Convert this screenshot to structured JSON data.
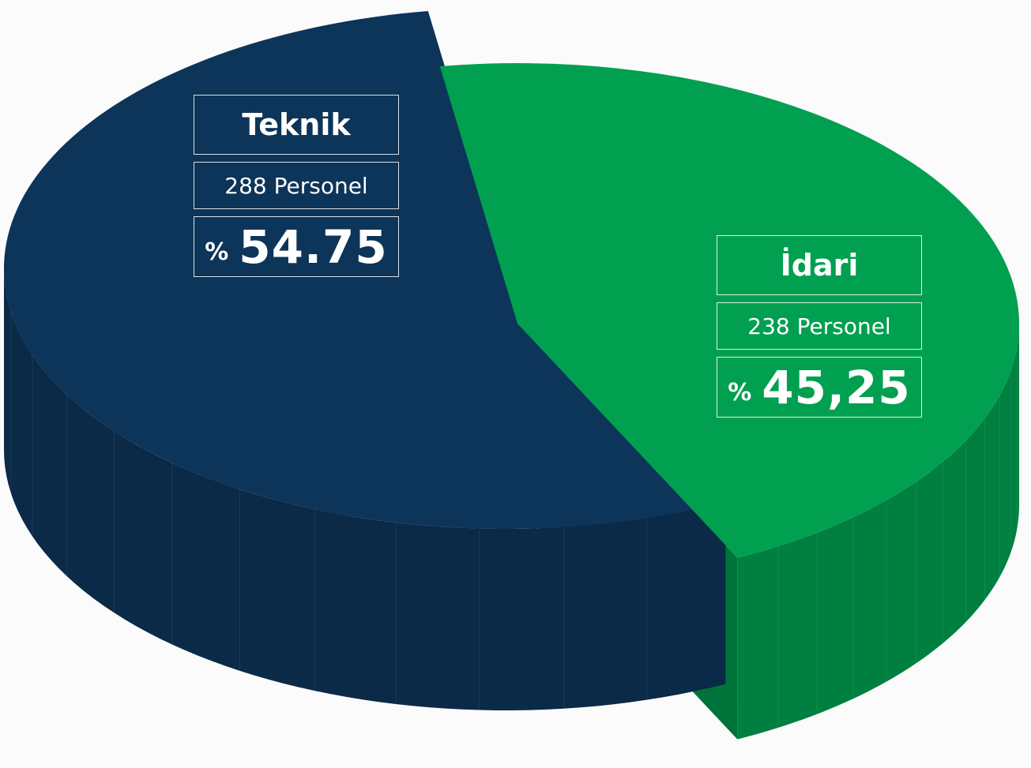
{
  "chart_data": {
    "type": "pie",
    "categories": [
      "Teknik",
      "İdari"
    ],
    "values": [
      54.75,
      45.25
    ],
    "value_labels": [
      "54.75",
      "45,25"
    ],
    "value_prefix": "%",
    "personnel_labels": [
      "288 Personel",
      "238 Personel"
    ],
    "colors": [
      "#0d3459",
      "#00a050"
    ]
  }
}
